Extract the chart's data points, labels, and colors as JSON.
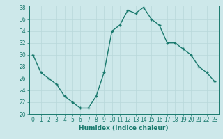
{
  "x": [
    0,
    1,
    2,
    3,
    4,
    5,
    6,
    7,
    8,
    9,
    10,
    11,
    12,
    13,
    14,
    15,
    16,
    17,
    18,
    19,
    20,
    21,
    22,
    23
  ],
  "y": [
    30,
    27,
    26,
    25,
    23,
    22,
    21,
    21,
    23,
    27,
    34,
    35,
    37.5,
    37,
    38,
    36,
    35,
    32,
    32,
    31,
    30,
    28,
    27,
    25.5
  ],
  "line_color": "#1a7a6e",
  "marker": "+",
  "bg_color": "#cde8ea",
  "grid_color": "#b8d8da",
  "xlabel": "Humidex (Indice chaleur)",
  "ylim": [
    20,
    38
  ],
  "xlim": [
    -0.5,
    23.5
  ],
  "yticks": [
    20,
    22,
    24,
    26,
    28,
    30,
    32,
    34,
    36,
    38
  ],
  "xticks": [
    0,
    1,
    2,
    3,
    4,
    5,
    6,
    7,
    8,
    9,
    10,
    11,
    12,
    13,
    14,
    15,
    16,
    17,
    18,
    19,
    20,
    21,
    22,
    23
  ],
  "tick_fontsize": 5.5,
  "label_fontsize": 6.5,
  "line_width": 1.0,
  "marker_size": 3.5
}
